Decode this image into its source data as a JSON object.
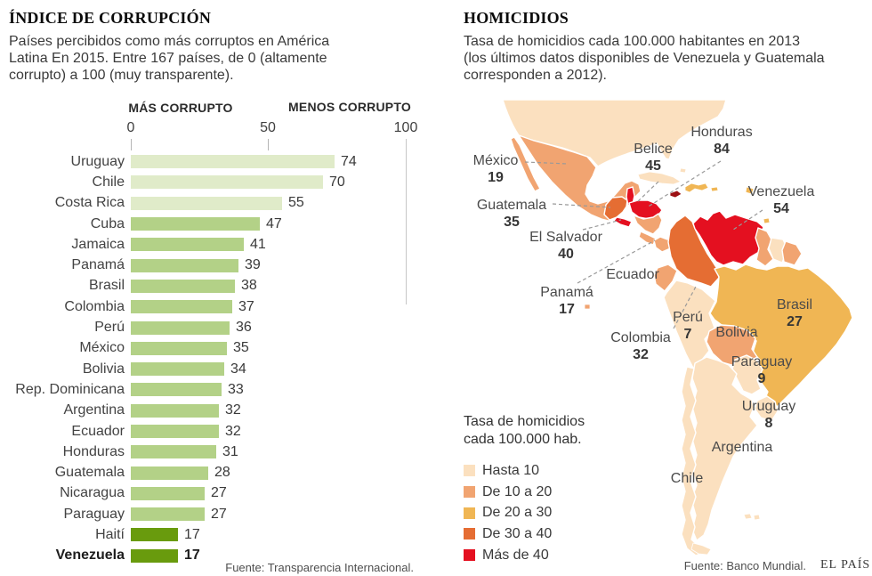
{
  "left_panel": {
    "title": "ÍNDICE DE CORRUPCIÓN",
    "subtitle_lines": [
      "Países percibidos como más corruptos en América",
      "Latina En 2015. Entre 167 países, de 0 (altamente",
      "corrupto) a 100 (muy transparente)."
    ],
    "axis": {
      "more": "MÁS CORRUPTO",
      "less": "MENOS CORRUPTO",
      "ticks": [
        "0",
        "50",
        "100"
      ]
    },
    "source": "Fuente: Transparencia Internacional."
  },
  "right_panel": {
    "title": "HOMICIDIOS",
    "subtitle_lines": [
      "Tasa de homicidios cada 100.000 habitantes en 2013",
      "(los últimos datos disponibles de Venezuela y Guatemala",
      "corresponden a 2012)."
    ],
    "legend": {
      "title_lines": [
        "Tasa de homicidios",
        "cada 100.000 hab."
      ]
    },
    "source": "Fuente: Banco Mundial.",
    "brand": "EL PAÍS"
  },
  "colors": {
    "bar_shades": {
      "light": "#e0ebc9",
      "mid": "#b3d187",
      "dark": "#699b0d"
    },
    "map_classes": {
      "hasta10": "#fbe0bf",
      "de10a20": "#f1a471",
      "de20a30": "#f0b654",
      "de30a40": "#e56d33",
      "mas40": "#e41020",
      "mas40dark": "#9c1013"
    }
  },
  "chart_data": [
    {
      "type": "bar",
      "title": "ÍNDICE DE CORRUPCIÓN",
      "orientation": "horizontal",
      "xlim": [
        0,
        100
      ],
      "x_ticks": [
        0,
        50,
        100
      ],
      "annotations": [
        "MÁS CORRUPTO",
        "MENOS CORRUPTO"
      ],
      "categories": [
        "Uruguay",
        "Chile",
        "Costa Rica",
        "Cuba",
        "Jamaica",
        "Panamá",
        "Brasil",
        "Colombia",
        "Perú",
        "México",
        "Bolivia",
        "Rep. Dominicana",
        "Argentina",
        "Ecuador",
        "Honduras",
        "Guatemala",
        "Nicaragua",
        "Paraguay",
        "Haití",
        "Venezuela"
      ],
      "values": [
        74,
        70,
        55,
        47,
        41,
        39,
        38,
        37,
        36,
        35,
        34,
        33,
        32,
        32,
        31,
        28,
        27,
        27,
        17,
        17
      ],
      "bar_shades": [
        "light",
        "light",
        "light",
        "mid",
        "mid",
        "mid",
        "mid",
        "mid",
        "mid",
        "mid",
        "mid",
        "mid",
        "mid",
        "mid",
        "mid",
        "mid",
        "mid",
        "mid",
        "dark",
        "dark"
      ],
      "emphasized_category": "Venezuela"
    },
    {
      "type": "choropleth_map",
      "region": "América Latina",
      "legend_title": "Tasa de homicidios cada 100.000 hab.",
      "classes": [
        {
          "label": "Hasta 10",
          "class": "hasta10"
        },
        {
          "label": "De 10 a 20",
          "class": "de10a20"
        },
        {
          "label": "De 20 a 30",
          "class": "de20a30"
        },
        {
          "label": "De 30 a 40",
          "class": "de30a40"
        },
        {
          "label": "Más de 40",
          "class": "mas40"
        }
      ],
      "countries": [
        {
          "id": "usa",
          "label": "",
          "class": "hasta10"
        },
        {
          "id": "mexico",
          "label": "México",
          "value": "19",
          "class": "de10a20"
        },
        {
          "id": "belize",
          "label": "Belice",
          "value": "45",
          "class": "mas40"
        },
        {
          "id": "honduras",
          "label": "Honduras",
          "value": "84",
          "class": "mas40"
        },
        {
          "id": "guatemala",
          "label": "Guatemala",
          "value": "35",
          "class": "de30a40"
        },
        {
          "id": "elsalvador",
          "label": "El Salvador",
          "value": "40",
          "class": "mas40"
        },
        {
          "id": "nicaragua",
          "label": "",
          "class": "de10a20"
        },
        {
          "id": "costarica",
          "label": "",
          "class": "de10a20"
        },
        {
          "id": "panama",
          "label": "Panamá",
          "value": "17",
          "class": "de10a20"
        },
        {
          "id": "cuba",
          "label": "",
          "class": "hasta10"
        },
        {
          "id": "jamaica",
          "label": "",
          "class": "mas40dark"
        },
        {
          "id": "hispaniola",
          "label": "",
          "class": "de20a30"
        },
        {
          "id": "puertorico",
          "label": "",
          "class": "de20a30"
        },
        {
          "id": "antilles",
          "label": "",
          "class": "de20a30"
        },
        {
          "id": "trinidad",
          "label": "",
          "class": "de20a30"
        },
        {
          "id": "venezuela",
          "label": "Venezuela",
          "value": "54",
          "class": "mas40"
        },
        {
          "id": "colombia",
          "label": "Colombia",
          "value": "32",
          "class": "de30a40"
        },
        {
          "id": "guyana",
          "label": "",
          "class": "de10a20"
        },
        {
          "id": "suriname",
          "label": "",
          "class": "hasta10"
        },
        {
          "id": "frguiana",
          "label": "",
          "class": "de10a20"
        },
        {
          "id": "ecuador",
          "label": "Ecuador",
          "class": "de10a20"
        },
        {
          "id": "galapagos",
          "label": "",
          "class": "de10a20"
        },
        {
          "id": "peru",
          "label": "Perú",
          "value": "7",
          "class": "hasta10"
        },
        {
          "id": "brasil",
          "label": "Brasil",
          "value": "27",
          "class": "de20a30"
        },
        {
          "id": "bolivia",
          "label": "Bolivia",
          "class": "de10a20"
        },
        {
          "id": "paraguay",
          "label": "Paraguay",
          "value": "9",
          "class": "hasta10"
        },
        {
          "id": "uruguay",
          "label": "Uruguay",
          "value": "8",
          "class": "hasta10"
        },
        {
          "id": "argentina",
          "label": "Argentina",
          "class": "hasta10"
        },
        {
          "id": "chile",
          "label": "Chile",
          "class": "hasta10"
        },
        {
          "id": "tierradelfuego",
          "label": "",
          "class": "hasta10"
        },
        {
          "id": "falklands",
          "label": "",
          "class": "hasta10"
        },
        {
          "id": "bahamas",
          "label": "",
          "class": "hasta10"
        }
      ]
    }
  ]
}
